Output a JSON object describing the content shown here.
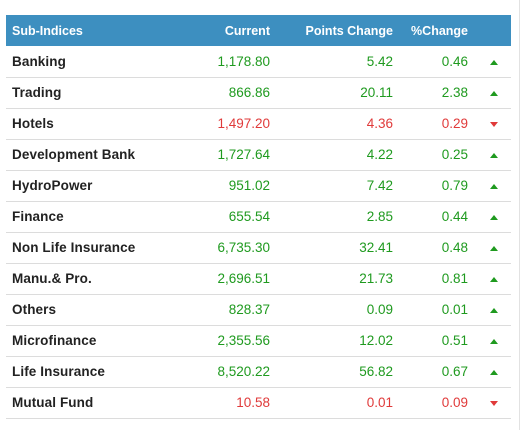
{
  "header": {
    "name": "Sub-Indices",
    "current": "Current",
    "points_change": "Points Change",
    "pct_change": "%Change"
  },
  "colors": {
    "header_bg": "#3d8fc0",
    "up": "#1f9a1f",
    "down": "#e03a3a"
  },
  "rows": [
    {
      "name": "Banking",
      "current": "1,178.80",
      "points": "5.42",
      "pct": "0.46",
      "dir": "up"
    },
    {
      "name": "Trading",
      "current": "866.86",
      "points": "20.11",
      "pct": "2.38",
      "dir": "up"
    },
    {
      "name": "Hotels",
      "current": "1,497.20",
      "points": "4.36",
      "pct": "0.29",
      "dir": "down"
    },
    {
      "name": "Development Bank",
      "current": "1,727.64",
      "points": "4.22",
      "pct": "0.25",
      "dir": "up"
    },
    {
      "name": "HydroPower",
      "current": "951.02",
      "points": "7.42",
      "pct": "0.79",
      "dir": "up"
    },
    {
      "name": "Finance",
      "current": "655.54",
      "points": "2.85",
      "pct": "0.44",
      "dir": "up"
    },
    {
      "name": "Non Life Insurance",
      "current": "6,735.30",
      "points": "32.41",
      "pct": "0.48",
      "dir": "up"
    },
    {
      "name": "Manu.& Pro.",
      "current": "2,696.51",
      "points": "21.73",
      "pct": "0.81",
      "dir": "up"
    },
    {
      "name": "Others",
      "current": "828.37",
      "points": "0.09",
      "pct": "0.01",
      "dir": "up"
    },
    {
      "name": "Microfinance",
      "current": "2,355.56",
      "points": "12.02",
      "pct": "0.51",
      "dir": "up"
    },
    {
      "name": "Life Insurance",
      "current": "8,520.22",
      "points": "56.82",
      "pct": "0.67",
      "dir": "up"
    },
    {
      "name": "Mutual Fund",
      "current": "10.58",
      "points": "0.01",
      "pct": "0.09",
      "dir": "down"
    }
  ]
}
